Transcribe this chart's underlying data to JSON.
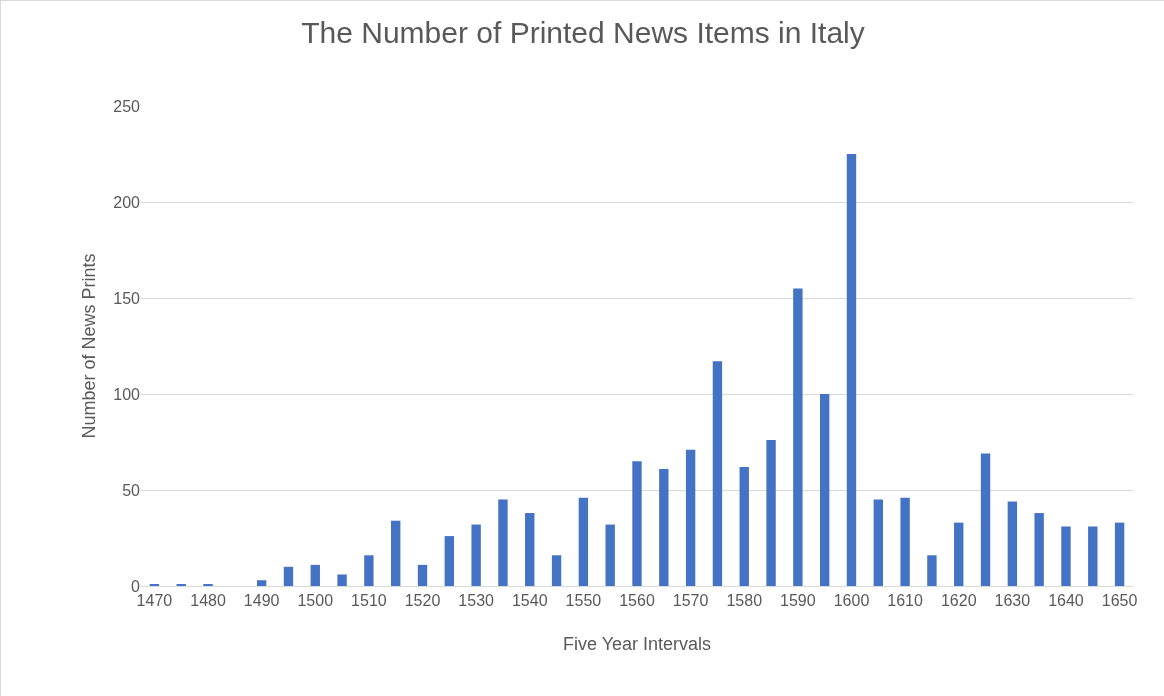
{
  "chart_data": {
    "type": "bar",
    "title": "The Number of Printed News Items in Italy",
    "xlabel": "Five Year Intervals",
    "ylabel": "Number of News Prints",
    "categories": [
      "1470",
      null,
      "1480",
      null,
      "1490",
      null,
      "1500",
      null,
      "1510",
      null,
      "1520",
      null,
      "1530",
      null,
      "1540",
      null,
      "1550",
      null,
      "1560",
      null,
      "1570",
      null,
      "1580",
      null,
      "1590",
      null,
      "1600",
      null,
      "1610",
      null,
      "1620",
      null,
      "1630",
      null,
      "1640",
      null,
      "1650"
    ],
    "values": [
      1,
      1,
      1,
      0,
      3,
      10,
      11,
      6,
      16,
      34,
      11,
      26,
      32,
      45,
      38,
      16,
      46,
      32,
      65,
      61,
      71,
      117,
      62,
      76,
      155,
      100,
      225,
      45,
      46,
      16,
      33,
      69,
      44,
      38,
      31,
      31,
      33
    ],
    "color": "#4472c4",
    "ylim": [
      0,
      250
    ],
    "yticks": [
      0,
      50,
      100,
      150,
      200,
      250
    ],
    "grid": "y",
    "legend": false
  }
}
